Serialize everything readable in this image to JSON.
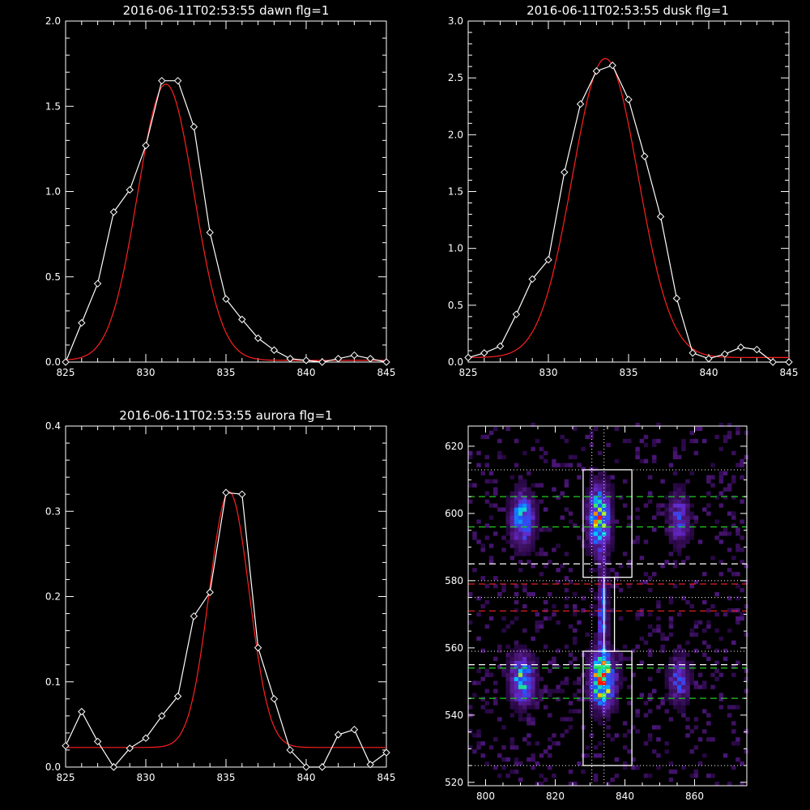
{
  "colors": {
    "background": "#000000",
    "axis": "#ffffff",
    "data_line": "#ffffff",
    "fit_line": "#ff2020",
    "guide_white": "#ffffff",
    "guide_green": "#22cc22",
    "guide_red": "#dd2222"
  },
  "chart_data": [
    {
      "id": "dawn",
      "type": "line",
      "title": "2016-06-11T02:53:55 dawn flg=1",
      "xlim": [
        825,
        845
      ],
      "ylim": [
        0,
        2.0
      ],
      "xticks": [
        "825",
        "830",
        "835",
        "840",
        "845"
      ],
      "yticks": [
        "0.0",
        "0.5",
        "1.0",
        "1.5",
        "2.0"
      ],
      "series": [
        {
          "marker": "diamond",
          "x": [
            825,
            826,
            827,
            828,
            829,
            830,
            831,
            832,
            833,
            834,
            835,
            836,
            837,
            838,
            839,
            840,
            841,
            842,
            843,
            844,
            845
          ],
          "y": [
            0.0,
            0.23,
            0.46,
            0.88,
            1.01,
            1.27,
            1.65,
            1.65,
            1.38,
            0.76,
            0.37,
            0.25,
            0.14,
            0.07,
            0.02,
            0.01,
            0.0,
            0.02,
            0.04,
            0.02,
            0.0
          ]
        },
        {
          "marker": "none",
          "gaussian": {
            "amp": 1.62,
            "mu": 831.25,
            "sigma": 1.75,
            "offset": 0.01
          }
        }
      ]
    },
    {
      "id": "dusk",
      "type": "line",
      "title": "2016-06-11T02:53:55 dusk flg=1",
      "xlim": [
        825,
        845
      ],
      "ylim": [
        0,
        3.0
      ],
      "xticks": [
        "825",
        "830",
        "835",
        "840",
        "845"
      ],
      "yticks": [
        "0.0",
        "0.5",
        "1.0",
        "1.5",
        "2.0",
        "2.5",
        "3.0"
      ],
      "series": [
        {
          "marker": "diamond",
          "x": [
            825,
            826,
            827,
            828,
            829,
            830,
            831,
            832,
            833,
            834,
            835,
            836,
            837,
            838,
            839,
            840,
            841,
            842,
            843,
            844,
            845
          ],
          "y": [
            0.04,
            0.08,
            0.14,
            0.42,
            0.73,
            0.9,
            1.67,
            2.27,
            2.56,
            2.61,
            2.31,
            1.81,
            1.28,
            0.56,
            0.08,
            0.03,
            0.07,
            0.13,
            0.11,
            0.0,
            0.0
          ]
        },
        {
          "marker": "none",
          "gaussian": {
            "amp": 2.63,
            "mu": 833.55,
            "sigma": 2.05,
            "offset": 0.04
          }
        }
      ]
    },
    {
      "id": "aurora",
      "type": "line",
      "title": "2016-06-11T02:53:55 aurora flg=1",
      "xlim": [
        825,
        845
      ],
      "ylim": [
        0,
        0.4
      ],
      "xticks": [
        "825",
        "830",
        "835",
        "840",
        "845"
      ],
      "yticks": [
        "0.0",
        "0.1",
        "0.2",
        "0.3",
        "0.4"
      ],
      "series": [
        {
          "marker": "diamond",
          "x": [
            825,
            826,
            827,
            828,
            829,
            830,
            831,
            832,
            833,
            834,
            835,
            836,
            837,
            838,
            839,
            840,
            841,
            842,
            843,
            844,
            845
          ],
          "y": [
            0.025,
            0.065,
            0.03,
            0.0,
            0.022,
            0.034,
            0.06,
            0.083,
            0.177,
            0.205,
            0.322,
            0.32,
            0.14,
            0.08,
            0.02,
            0.0,
            0.0,
            0.038,
            0.044,
            0.003,
            0.017
          ]
        },
        {
          "marker": "none",
          "gaussian": {
            "amp": 0.3,
            "mu": 835.2,
            "sigma": 1.25,
            "offset": 0.023
          }
        }
      ]
    },
    {
      "id": "image",
      "type": "heatmap",
      "title": "",
      "xlim": [
        795,
        875
      ],
      "ylim": [
        519,
        626
      ],
      "xticks": [
        "800",
        "820",
        "840",
        "860"
      ],
      "yticks": [
        "520",
        "540",
        "560",
        "580",
        "600",
        "620"
      ],
      "blobs": [
        {
          "x": 810,
          "y": 598,
          "sx": 2.2,
          "sy": 5,
          "amp": 0.55
        },
        {
          "x": 810,
          "y": 550,
          "sx": 2.2,
          "sy": 4.5,
          "amp": 0.6
        },
        {
          "x": 832,
          "y": 598,
          "sx": 2.0,
          "sy": 6,
          "amp": 0.75
        },
        {
          "x": 833,
          "y": 550,
          "sx": 2.2,
          "sy": 5,
          "amp": 1.0
        },
        {
          "x": 833,
          "y": 570,
          "sx": 0.9,
          "sy": 10,
          "amp": 0.4
        },
        {
          "x": 855,
          "y": 598,
          "sx": 2.0,
          "sy": 5,
          "amp": 0.35
        },
        {
          "x": 855,
          "y": 550,
          "sx": 2.0,
          "sy": 4.5,
          "amp": 0.35
        }
      ],
      "boxes": [
        {
          "x": [
            828,
            842
          ],
          "y": [
            581,
            613
          ]
        },
        {
          "x": [
            828,
            842
          ],
          "y": [
            525,
            559
          ]
        },
        {
          "x": [
            834,
            837
          ],
          "y": [
            559,
            581
          ]
        }
      ],
      "hlines": [
        {
          "y": 613,
          "color": "white",
          "style": "dotted"
        },
        {
          "y": 605,
          "color": "green",
          "style": "dashed"
        },
        {
          "y": 596,
          "color": "green",
          "style": "dashed"
        },
        {
          "y": 585,
          "color": "white",
          "style": "dashed"
        },
        {
          "y": 580,
          "color": "white",
          "style": "dotted"
        },
        {
          "y": 579,
          "color": "red",
          "style": "dashed"
        },
        {
          "y": 575,
          "color": "white",
          "style": "dotted"
        },
        {
          "y": 571,
          "color": "red",
          "style": "dashed"
        },
        {
          "y": 559,
          "color": "white",
          "style": "dotted"
        },
        {
          "y": 555,
          "color": "white",
          "style": "dashed"
        },
        {
          "y": 554,
          "color": "green",
          "style": "dashed"
        },
        {
          "y": 545,
          "color": "green",
          "style": "dashed"
        },
        {
          "y": 525,
          "color": "white",
          "style": "dotted"
        }
      ],
      "vlines": [
        {
          "x": 830.5,
          "color": "white",
          "style": "dotted"
        },
        {
          "x": 834,
          "color": "white",
          "style": "dotted"
        }
      ]
    }
  ]
}
